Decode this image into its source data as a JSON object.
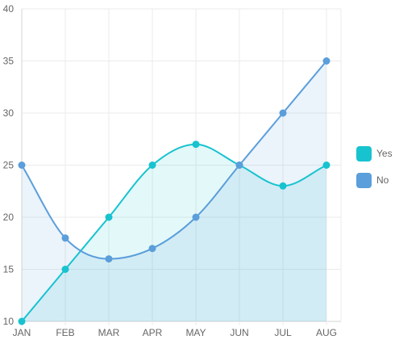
{
  "chart_data": {
    "type": "area",
    "x": [
      "JAN",
      "FEB",
      "MAR",
      "APR",
      "MAY",
      "JUN",
      "JUL",
      "AUG"
    ],
    "series": [
      {
        "name": "Yes",
        "values": [
          10,
          15,
          20,
          25,
          27,
          25,
          23,
          25
        ],
        "color": "#17c3cf",
        "fill": "rgba(23,195,207,0.12)"
      },
      {
        "name": "No",
        "values": [
          25,
          18,
          16,
          17,
          20,
          25,
          30,
          35
        ],
        "color": "#5a9edb",
        "fill": "rgba(90,158,219,0.12)"
      }
    ],
    "ylim": [
      10,
      40
    ],
    "yticks": [
      10,
      15,
      20,
      25,
      30,
      35,
      40
    ],
    "grid": true,
    "legend": "right",
    "smooth": true
  }
}
